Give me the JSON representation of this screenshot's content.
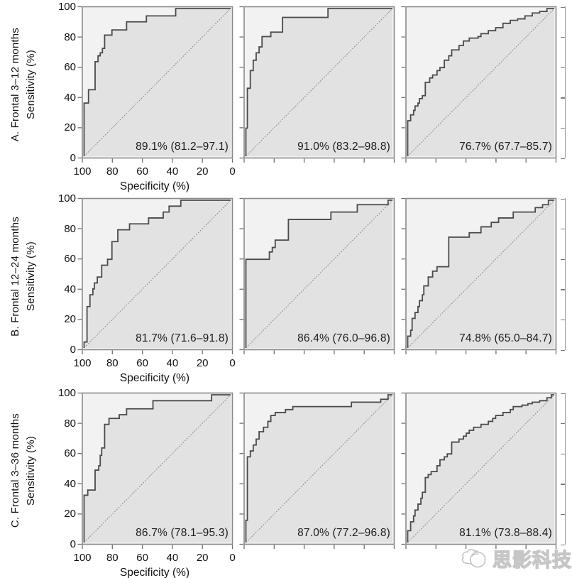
{
  "figure": {
    "x_axis_label": "Specificity (%)",
    "y_axis_label": "Sensitivity (%)",
    "x_tick_labels": [
      "100",
      "80",
      "60",
      "40",
      "20",
      "0"
    ],
    "y_tick_labels": [
      "0",
      "20",
      "40",
      "60",
      "80",
      "100"
    ],
    "watermark_text": "思影科技",
    "colors": {
      "above_fill": "#f2f2f2",
      "below_fill": "#e2e2e2",
      "frame": "#8a8a8a",
      "curve": "#4b4b4b",
      "diagonal": "#8f8f8f",
      "tick": "#6f6f6f",
      "text": "#1a1a1a",
      "watermark": "#c6c6c6"
    }
  },
  "chart_data": [
    {
      "type": "line",
      "row_label": "A. Frontal 3–12 months",
      "x_axis": "Specificity (%)",
      "y_axis": "Sensitivity (%)",
      "x_range": [
        100,
        0
      ],
      "y_range": [
        0,
        100
      ],
      "diagonal_reference": true,
      "panels": [
        {
          "annotation": "89.1% (81.2–97.1)",
          "auc_percent": 89.1,
          "ci": [
            81.2,
            97.1
          ],
          "roc_points": [
            [
              100,
              36
            ],
            [
              97,
              45
            ],
            [
              92.5,
              64
            ],
            [
              90.5,
              68
            ],
            [
              89,
              70
            ],
            [
              87.5,
              73
            ],
            [
              86,
              82
            ],
            [
              81,
              85.5
            ],
            [
              71,
              91
            ],
            [
              57.5,
              95
            ],
            [
              37.5,
              100
            ],
            [
              0,
              100
            ]
          ]
        },
        {
          "annotation": "91.0% (83.2–98.8)",
          "auc_percent": 91.0,
          "ci": [
            83.2,
            98.8
          ],
          "roc_points": [
            [
              100,
              19
            ],
            [
              99,
              46
            ],
            [
              97,
              58
            ],
            [
              95,
              65
            ],
            [
              93,
              70
            ],
            [
              91,
              74
            ],
            [
              89,
              81
            ],
            [
              83,
              84
            ],
            [
              75,
              94
            ],
            [
              44,
              100
            ],
            [
              0,
              100
            ]
          ]
        },
        {
          "annotation": "76.7% (67.7–85.7)",
          "auc_percent": 76.7,
          "ci": [
            67.7,
            85.7
          ],
          "roc_points": [
            [
              100,
              24
            ],
            [
              98,
              28
            ],
            [
              96,
              31
            ],
            [
              95,
              34
            ],
            [
              93,
              36
            ],
            [
              92,
              39
            ],
            [
              90,
              41
            ],
            [
              88,
              50
            ],
            [
              85,
              53
            ],
            [
              83,
              55
            ],
            [
              80,
              58
            ],
            [
              78,
              60
            ],
            [
              75,
              65
            ],
            [
              72,
              68
            ],
            [
              70,
              72
            ],
            [
              65,
              75
            ],
            [
              62,
              78
            ],
            [
              58,
              80
            ],
            [
              52,
              81
            ],
            [
              50,
              83
            ],
            [
              45,
              85
            ],
            [
              40,
              87
            ],
            [
              35,
              90
            ],
            [
              30,
              92
            ],
            [
              25,
              93
            ],
            [
              20,
              95
            ],
            [
              15,
              97
            ],
            [
              10,
              98
            ],
            [
              5,
              100
            ],
            [
              0,
              100
            ]
          ]
        }
      ]
    },
    {
      "type": "line",
      "row_label": "B. Frontal 12–24 months",
      "x_axis": "Specificity (%)",
      "y_axis": "Sensitivity (%)",
      "x_range": [
        100,
        0
      ],
      "y_range": [
        0,
        100
      ],
      "diagonal_reference": true,
      "panels": [
        {
          "annotation": "81.7% (71.6–91.8)",
          "auc_percent": 81.7,
          "ci": [
            71.6,
            91.8
          ],
          "roc_points": [
            [
              100,
              4
            ],
            [
              98,
              28
            ],
            [
              96,
              36
            ],
            [
              94,
              40
            ],
            [
              93,
              44
            ],
            [
              91,
              48
            ],
            [
              88,
              56
            ],
            [
              84,
              60
            ],
            [
              81,
              72
            ],
            [
              77,
              80
            ],
            [
              69,
              84
            ],
            [
              56,
              88
            ],
            [
              46,
              92
            ],
            [
              42,
              96
            ],
            [
              34,
              100
            ],
            [
              0,
              100
            ]
          ]
        },
        {
          "annotation": "86.4% (76.0–96.8)",
          "auc_percent": 86.4,
          "ci": [
            76.0,
            96.8
          ],
          "roc_points": [
            [
              100,
              60
            ],
            [
              84,
              65
            ],
            [
              82,
              68
            ],
            [
              80,
              73
            ],
            [
              71,
              87
            ],
            [
              42,
              92
            ],
            [
              24,
              97
            ],
            [
              3,
              100
            ],
            [
              0,
              100
            ]
          ]
        },
        {
          "annotation": "74.8% (65.0–84.7)",
          "auc_percent": 74.8,
          "ci": [
            65.0,
            84.7
          ],
          "roc_points": [
            [
              100,
              8
            ],
            [
              98,
              12
            ],
            [
              97,
              20
            ],
            [
              95,
              24
            ],
            [
              93,
              28
            ],
            [
              92,
              32
            ],
            [
              90,
              36
            ],
            [
              89,
              42
            ],
            [
              86,
              48
            ],
            [
              83,
              52
            ],
            [
              80,
              55
            ],
            [
              72,
              75
            ],
            [
              58,
              78
            ],
            [
              50,
              82
            ],
            [
              43,
              85
            ],
            [
              38,
              88
            ],
            [
              28,
              92
            ],
            [
              13,
              95
            ],
            [
              8,
              97
            ],
            [
              4,
              100
            ],
            [
              0,
              100
            ]
          ]
        }
      ]
    },
    {
      "type": "line",
      "row_label": "C. Frontal 3–36 months",
      "x_axis": "Specificity (%)",
      "y_axis": "Sensitivity (%)",
      "x_range": [
        100,
        0
      ],
      "y_range": [
        0,
        100
      ],
      "diagonal_reference": true,
      "panels": [
        {
          "annotation": "86.7% (78.1–95.3)",
          "auc_percent": 86.7,
          "ci": [
            78.1,
            95.3
          ],
          "roc_points": [
            [
              100,
              32
            ],
            [
              97.5,
              35.5
            ],
            [
              92.5,
              49
            ],
            [
              90,
              52
            ],
            [
              89,
              59
            ],
            [
              88,
              64
            ],
            [
              86,
              80
            ],
            [
              83,
              84
            ],
            [
              76,
              86.5
            ],
            [
              71,
              90.5
            ],
            [
              53,
              96
            ],
            [
              13,
              100
            ],
            [
              0,
              100
            ]
          ]
        },
        {
          "annotation": "87.0% (77.2–96.8)",
          "auc_percent": 87.0,
          "ci": [
            77.2,
            96.8
          ],
          "roc_points": [
            [
              100,
              15
            ],
            [
              99,
              58
            ],
            [
              97,
              62
            ],
            [
              95,
              66
            ],
            [
              93,
              70
            ],
            [
              91,
              75
            ],
            [
              88,
              78
            ],
            [
              85,
              82
            ],
            [
              83,
              86
            ],
            [
              80,
              88
            ],
            [
              73,
              90
            ],
            [
              68,
              92
            ],
            [
              28,
              95
            ],
            [
              8,
              97
            ],
            [
              3,
              100
            ],
            [
              0,
              100
            ]
          ]
        },
        {
          "annotation": "81.1% (73.8–88.4)",
          "auc_percent": 81.1,
          "ci": [
            73.8,
            88.4
          ],
          "roc_points": [
            [
              100,
              8
            ],
            [
              98,
              14
            ],
            [
              96,
              18
            ],
            [
              95,
              22
            ],
            [
              93,
              26
            ],
            [
              91,
              30
            ],
            [
              90,
              34
            ],
            [
              88,
              44
            ],
            [
              86,
              46
            ],
            [
              84,
              48
            ],
            [
              80,
              52
            ],
            [
              78,
              56
            ],
            [
              75,
              58
            ],
            [
              73,
              60
            ],
            [
              70,
              68
            ],
            [
              65,
              70
            ],
            [
              62,
              72
            ],
            [
              60,
              74
            ],
            [
              58,
              76
            ],
            [
              55,
              78
            ],
            [
              50,
              80
            ],
            [
              45,
              82
            ],
            [
              42,
              84
            ],
            [
              40,
              86
            ],
            [
              35,
              88
            ],
            [
              30,
              90
            ],
            [
              28,
              92
            ],
            [
              22,
              93
            ],
            [
              18,
              94
            ],
            [
              15,
              95
            ],
            [
              10,
              96
            ],
            [
              5,
              98
            ],
            [
              2,
              100
            ],
            [
              0,
              100
            ]
          ]
        }
      ]
    }
  ]
}
